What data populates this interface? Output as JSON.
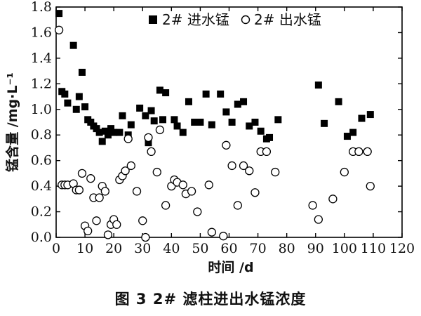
{
  "caption": "图 3   2# 滤柱进出水锰浓度",
  "chart_data": {
    "type": "scatter",
    "title": "",
    "xlabel": "时间 /d",
    "ylabel": "锰含量 /mg·L⁻¹",
    "xlim": [
      0,
      120
    ],
    "ylim": [
      0,
      1.8
    ],
    "xticks": [
      "0",
      "10",
      "20",
      "30",
      "40",
      "50",
      "60",
      "70",
      "80",
      "90",
      "100",
      "110",
      "120"
    ],
    "yticks": [
      "0.0",
      "0.2",
      "0.4",
      "0.6",
      "0.8",
      "1.0",
      "1.2",
      "1.4",
      "1.6",
      "1.8"
    ],
    "legend_position": "top-right",
    "grid": false,
    "series": [
      {
        "name": "2# 进水锰",
        "marker": "filled-square",
        "color": "#000000",
        "x": [
          1,
          2,
          3,
          4,
          6,
          7,
          8,
          9,
          10,
          11,
          12,
          13,
          14,
          15,
          16,
          17,
          18,
          19,
          20,
          22,
          23,
          25,
          26,
          29,
          31,
          32,
          33,
          34,
          36,
          37,
          38,
          41,
          42,
          44,
          46,
          48,
          49,
          50,
          52,
          54,
          57,
          59,
          61,
          63,
          65,
          67,
          69,
          71,
          73,
          74,
          77,
          91,
          93,
          98,
          101,
          103,
          106,
          109
        ],
        "y": [
          1.75,
          1.14,
          1.12,
          1.05,
          1.5,
          1.0,
          1.1,
          1.29,
          1.02,
          0.92,
          0.9,
          0.87,
          0.85,
          0.82,
          0.75,
          0.83,
          0.8,
          0.85,
          0.82,
          0.82,
          0.95,
          0.8,
          0.88,
          1.01,
          0.95,
          0.74,
          0.99,
          0.91,
          1.15,
          0.92,
          1.13,
          0.92,
          0.87,
          0.82,
          1.06,
          0.9,
          0.9,
          0.9,
          1.12,
          0.88,
          1.12,
          0.98,
          0.9,
          1.04,
          1.06,
          0.87,
          0.9,
          0.83,
          0.77,
          0.78,
          0.92,
          1.19,
          0.89,
          1.06,
          0.79,
          0.82,
          0.93,
          0.96
        ]
      },
      {
        "name": "2# 出水锰",
        "marker": "open-circle",
        "color": "#000000",
        "x": [
          1,
          2,
          3,
          4,
          6,
          7,
          8,
          9,
          10,
          11,
          12,
          13,
          14,
          15,
          16,
          17,
          18,
          19,
          20,
          21,
          22,
          23,
          24,
          25,
          26,
          28,
          30,
          31,
          32,
          33,
          35,
          36,
          38,
          40,
          41,
          42,
          44,
          45,
          47,
          49,
          53,
          54,
          58,
          59,
          61,
          63,
          65,
          67,
          69,
          71,
          73,
          76,
          89,
          91,
          96,
          100,
          103,
          105,
          108,
          109
        ],
        "y": [
          1.62,
          0.41,
          0.41,
          0.41,
          0.42,
          0.37,
          0.37,
          0.5,
          0.09,
          0.05,
          0.46,
          0.31,
          0.13,
          0.31,
          0.4,
          0.36,
          0.02,
          0.1,
          0.14,
          0.1,
          0.45,
          0.48,
          0.52,
          0.77,
          0.56,
          0.36,
          0.13,
          0.0,
          0.78,
          0.67,
          0.51,
          0.84,
          0.25,
          0.4,
          0.45,
          0.43,
          0.41,
          0.34,
          0.36,
          0.2,
          0.41,
          0.04,
          0.01,
          0.72,
          0.56,
          0.25,
          0.56,
          0.52,
          0.35,
          0.67,
          0.67,
          0.51,
          0.25,
          0.14,
          0.3,
          0.51,
          0.67,
          0.67,
          0.67,
          0.4
        ]
      }
    ]
  }
}
